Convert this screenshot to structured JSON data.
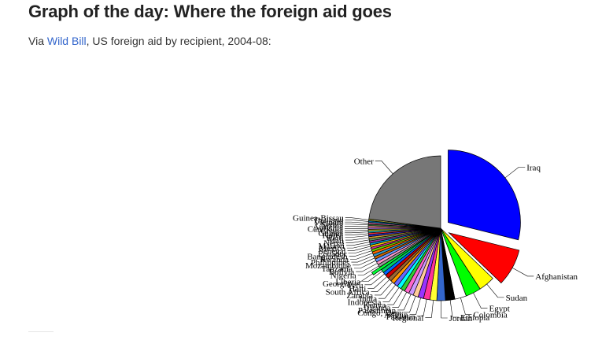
{
  "article": {
    "title": "Graph of the day: Where the foreign aid goes",
    "subtitle_prefix": "Via ",
    "subtitle_link": "Wild Bill",
    "subtitle_suffix": ", US foreign aid by recipient, 2004-08:"
  },
  "colors": {
    "title": "#222222",
    "link": "#3366cc"
  },
  "chart_data": {
    "type": "pie",
    "title": "",
    "slices": [
      {
        "label": "Iraq",
        "value": 30.2,
        "color": "#0000ff",
        "exploded": true
      },
      {
        "label": "Afghanistan",
        "value": 8.7,
        "color": "#ff0000",
        "exploded": true
      },
      {
        "label": "Sudan",
        "value": 3.8,
        "color": "#ffff00",
        "exploded": false
      },
      {
        "label": "Egypt",
        "value": 3.6,
        "color": "#00ff00",
        "exploded": false
      },
      {
        "label": "Colombia",
        "value": 2.7,
        "color": "#ffffff",
        "exploded": false
      },
      {
        "label": "Ethiopia",
        "value": 2.2,
        "color": "#000000",
        "exploded": false
      },
      {
        "label": "Jordan",
        "value": 2.0,
        "color": "#3366cc",
        "exploded": false
      },
      {
        "label": "Regional",
        "value": 1.6,
        "color": "#ffff33",
        "exploded": false
      },
      {
        "label": "Pakistan",
        "value": 1.5,
        "color": "#ff3399",
        "exploded": false
      },
      {
        "label": "Admin",
        "value": 1.3,
        "color": "#9933ff",
        "exploded": false
      },
      {
        "label": "Congo, Dem",
        "value": 1.2,
        "color": "#ffcc99",
        "exploded": false
      },
      {
        "label": "Palestinian",
        "value": 1.1,
        "color": "#cc99ff",
        "exploded": false
      },
      {
        "label": "Uganda",
        "value": 1.1,
        "color": "#ff66cc",
        "exploded": false
      },
      {
        "label": "Kenya",
        "value": 1.0,
        "color": "#33cc33",
        "exploded": false
      },
      {
        "label": "Indonesia",
        "value": 1.0,
        "color": "#00ffff",
        "exploded": false
      },
      {
        "label": "India",
        "value": 1.0,
        "color": "#6666ff",
        "exploded": false
      },
      {
        "label": "Zambia",
        "value": 0.9,
        "color": "#ff9900",
        "exploded": false
      },
      {
        "label": "South Africa",
        "value": 0.9,
        "color": "#996633",
        "exploded": false
      },
      {
        "label": "Haiti",
        "value": 0.9,
        "color": "#cc0000",
        "exploded": false
      },
      {
        "label": "Peru",
        "value": 0.8,
        "color": "#0066ff",
        "exploded": false
      },
      {
        "label": "Liberia",
        "value": 0.8,
        "color": "#00cc66",
        "exploded": false
      },
      {
        "label": "Georgia",
        "value": 0.7,
        "color": "#00ff33",
        "exploded": true
      },
      {
        "label": "Nigeria",
        "value": 0.7,
        "color": "#999999",
        "exploded": false
      },
      {
        "label": "Bolivia",
        "value": 0.7,
        "color": "#ff99cc",
        "exploded": false
      },
      {
        "label": "Tanzania",
        "value": 0.7,
        "color": "#6699ff",
        "exploded": false
      },
      {
        "label": "Mozambique",
        "value": 0.6,
        "color": "#cc6600",
        "exploded": false
      },
      {
        "label": "Philippines",
        "value": 0.6,
        "color": "#3399cc",
        "exploded": false
      },
      {
        "label": "Rwanda",
        "value": 0.6,
        "color": "#ff6600",
        "exploded": false
      },
      {
        "label": "Bangladesh",
        "value": 0.6,
        "color": "#66cc00",
        "exploded": false
      },
      {
        "label": "Ecuador",
        "value": 0.5,
        "color": "#cc3399",
        "exploded": false
      },
      {
        "label": "Senegal",
        "value": 0.5,
        "color": "#ffcc00",
        "exploded": false
      },
      {
        "label": "Mexico",
        "value": 0.5,
        "color": "#0099cc",
        "exploded": false
      },
      {
        "label": "Malawi",
        "value": 0.5,
        "color": "#993399",
        "exploded": false
      },
      {
        "label": "Nepal",
        "value": 0.5,
        "color": "#669966",
        "exploded": false
      },
      {
        "label": "Mali",
        "value": 0.5,
        "color": "#cc9933",
        "exploded": false
      },
      {
        "label": "Haiti",
        "value": 0.5,
        "color": "#3333cc",
        "exploded": false
      },
      {
        "label": "Korea",
        "value": 0.4,
        "color": "#ff3333",
        "exploded": false
      },
      {
        "label": "Guinea",
        "value": 0.4,
        "color": "#33cccc",
        "exploded": false
      },
      {
        "label": "Ghana",
        "value": 0.4,
        "color": "#cccc33",
        "exploded": false
      },
      {
        "label": "Cambodia",
        "value": 0.4,
        "color": "#9966cc",
        "exploded": false
      },
      {
        "label": "Armenia",
        "value": 0.4,
        "color": "#ff9999",
        "exploded": false
      },
      {
        "label": "Serbia",
        "value": 0.4,
        "color": "#336633",
        "exploded": false
      },
      {
        "label": "Vietnam",
        "value": 0.4,
        "color": "#cc6699",
        "exploded": false
      },
      {
        "label": "Thailand",
        "value": 0.4,
        "color": "#006699",
        "exploded": false
      },
      {
        "label": "Guinea-Bissau",
        "value": 0.4,
        "color": "#999933",
        "exploded": false
      },
      {
        "label": "Other",
        "value": 24.0,
        "color": "#777777",
        "exploded": false
      }
    ]
  }
}
